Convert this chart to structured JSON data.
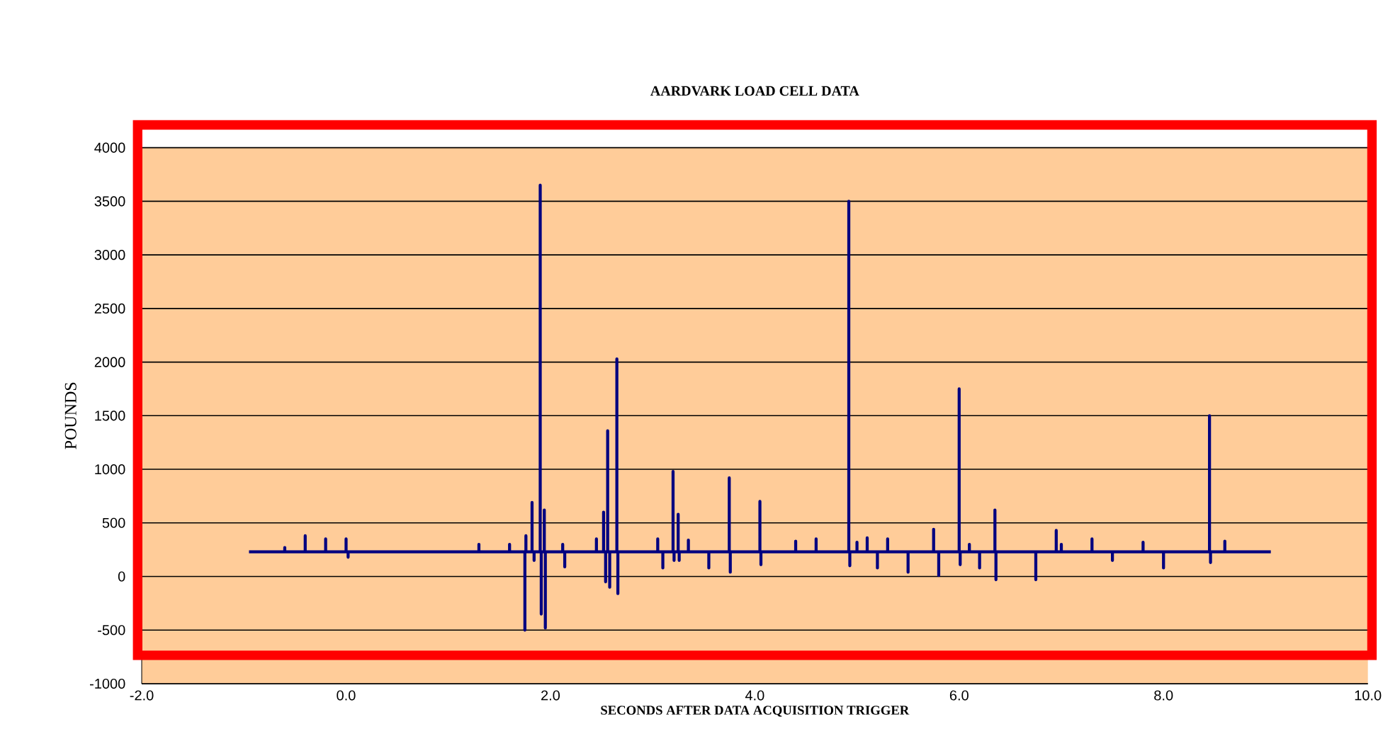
{
  "chart_data": {
    "type": "line",
    "title": "AARDVARK LOAD CELL DATA",
    "xlabel": "SECONDS AFTER DATA ACQUISITION TRIGGER",
    "ylabel": "POUNDS",
    "x": [
      -0.95,
      -0.6,
      -0.6,
      -0.6,
      -0.4,
      -0.4,
      -0.4,
      -0.2,
      -0.2,
      -0.2,
      0.0,
      0.0,
      0.0,
      0.02,
      0.02,
      0.02,
      1.3,
      1.3,
      1.3,
      1.6,
      1.6,
      1.6,
      1.75,
      1.75,
      1.75,
      1.76,
      1.76,
      1.76,
      1.82,
      1.82,
      1.82,
      1.84,
      1.84,
      1.84,
      1.9,
      1.9,
      1.9,
      1.91,
      1.91,
      1.91,
      1.94,
      1.94,
      1.94,
      1.95,
      1.95,
      1.95,
      2.12,
      2.12,
      2.12,
      2.14,
      2.14,
      2.14,
      2.45,
      2.45,
      2.45,
      2.52,
      2.52,
      2.52,
      2.54,
      2.54,
      2.54,
      2.56,
      2.56,
      2.56,
      2.58,
      2.58,
      2.58,
      2.65,
      2.65,
      2.65,
      2.66,
      2.66,
      2.66,
      3.05,
      3.05,
      3.05,
      3.1,
      3.1,
      3.1,
      3.2,
      3.2,
      3.2,
      3.21,
      3.21,
      3.21,
      3.25,
      3.25,
      3.25,
      3.26,
      3.26,
      3.26,
      3.35,
      3.35,
      3.35,
      3.55,
      3.55,
      3.55,
      3.75,
      3.75,
      3.75,
      3.76,
      3.76,
      3.76,
      4.05,
      4.05,
      4.05,
      4.06,
      4.06,
      4.06,
      4.4,
      4.4,
      4.4,
      4.6,
      4.6,
      4.6,
      4.92,
      4.92,
      4.92,
      4.93,
      4.93,
      4.93,
      5.0,
      5.0,
      5.0,
      5.1,
      5.1,
      5.1,
      5.2,
      5.2,
      5.2,
      5.3,
      5.3,
      5.3,
      5.5,
      5.5,
      5.5,
      5.75,
      5.75,
      5.75,
      5.8,
      5.8,
      5.8,
      6.0,
      6.0,
      6.0,
      6.01,
      6.01,
      6.01,
      6.1,
      6.1,
      6.1,
      6.2,
      6.2,
      6.2,
      6.35,
      6.35,
      6.35,
      6.36,
      6.36,
      6.36,
      6.75,
      6.75,
      6.75,
      6.95,
      6.95,
      6.95,
      7.0,
      7.0,
      7.0,
      7.3,
      7.3,
      7.3,
      7.5,
      7.5,
      7.5,
      7.8,
      7.8,
      7.8,
      8.0,
      8.0,
      8.0,
      8.45,
      8.45,
      8.45,
      8.46,
      8.46,
      8.46,
      8.6,
      8.6,
      8.6,
      9.05
    ],
    "values": [
      230,
      230,
      270,
      230,
      230,
      380,
      230,
      230,
      350,
      230,
      230,
      350,
      230,
      230,
      180,
      230,
      230,
      300,
      230,
      230,
      300,
      230,
      230,
      -500,
      230,
      230,
      380,
      230,
      230,
      690,
      230,
      230,
      150,
      230,
      230,
      3650,
      230,
      230,
      -350,
      230,
      230,
      620,
      230,
      230,
      -480,
      230,
      230,
      300,
      230,
      230,
      90,
      230,
      230,
      350,
      230,
      230,
      600,
      230,
      230,
      -50,
      230,
      230,
      1360,
      230,
      230,
      -100,
      230,
      230,
      2030,
      230,
      230,
      -160,
      230,
      230,
      350,
      230,
      230,
      80,
      230,
      230,
      980,
      230,
      230,
      150,
      230,
      230,
      580,
      230,
      230,
      150,
      230,
      230,
      340,
      230,
      230,
      80,
      230,
      230,
      920,
      230,
      230,
      40,
      230,
      230,
      700,
      230,
      230,
      110,
      230,
      230,
      330,
      230,
      230,
      350,
      230,
      230,
      3500,
      230,
      230,
      100,
      230,
      230,
      320,
      230,
      230,
      360,
      230,
      230,
      80,
      230,
      230,
      350,
      230,
      230,
      40,
      230,
      230,
      440,
      230,
      230,
      10,
      230,
      230,
      1750,
      230,
      230,
      110,
      230,
      230,
      300,
      230,
      230,
      80,
      230,
      230,
      620,
      230,
      230,
      -30,
      230,
      230,
      -30,
      230,
      230,
      430,
      230,
      230,
      300,
      230,
      230,
      350,
      230,
      230,
      150,
      230,
      230,
      320,
      230,
      230,
      80,
      230,
      230,
      1500,
      230,
      230,
      130,
      230,
      230,
      330,
      230,
      230
    ],
    "color": "#000080",
    "xlim": [
      -2.0,
      10.0
    ],
    "ylim": [
      -1000,
      4000
    ],
    "xticks": [
      {
        "value": -2,
        "label": "-2.0"
      },
      {
        "value": 0,
        "label": "0.0"
      },
      {
        "value": 2,
        "label": "2.0"
      },
      {
        "value": 4,
        "label": "4.0"
      },
      {
        "value": 6,
        "label": "6.0"
      },
      {
        "value": 8,
        "label": "8.0"
      },
      {
        "value": 10,
        "label": "10.0"
      }
    ],
    "yticks": [
      -1000,
      -500,
      0,
      500,
      1000,
      1500,
      2000,
      2500,
      3000,
      3500,
      4000
    ],
    "grid": "y",
    "marker": "none",
    "line_style": "solid"
  }
}
